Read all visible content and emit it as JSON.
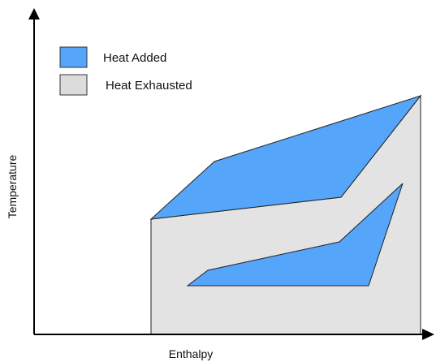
{
  "legend": {
    "items": [
      {
        "label": "Heat Added",
        "color": "#55a5fb"
      },
      {
        "label": "Heat Exhausted",
        "color": "#dcdcdc"
      }
    ]
  },
  "axes": {
    "x_label": "Enthalpy",
    "y_label": "Temperature",
    "color": "#000000"
  },
  "regions": {
    "heat_exhausted_color": "#e3e3e3",
    "heat_added_color": "#55a5fb",
    "outline_color": "#222222"
  }
}
